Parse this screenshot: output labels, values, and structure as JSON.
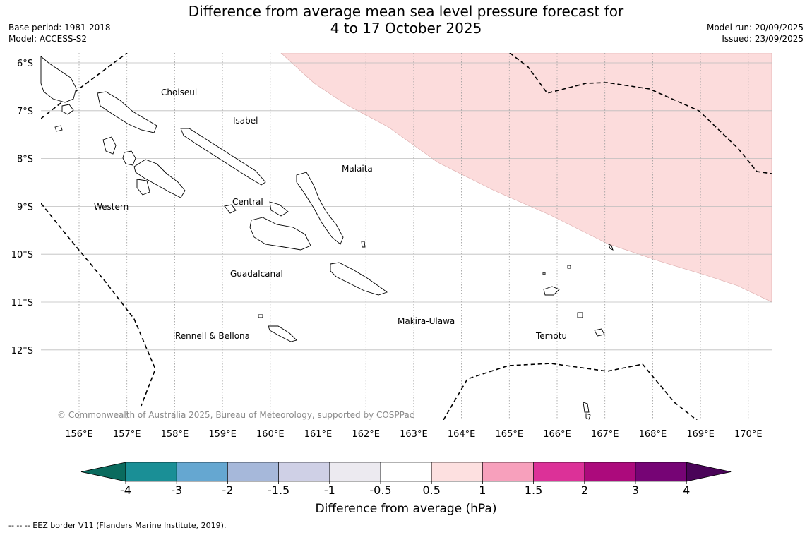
{
  "title": {
    "line1": "Difference from average mean sea level pressure forecast for",
    "line2": "4 to 17 October 2025"
  },
  "meta_left": {
    "base_period": "Base period: 1981-2018",
    "model": "Model: ACCESS-S2"
  },
  "meta_right": {
    "model_run": "Model run: 20/09/2025",
    "issued": "Issued: 23/09/2025"
  },
  "lat_labels": [
    "6°S",
    "7°S",
    "8°S",
    "9°S",
    "10°S",
    "11°S",
    "12°S"
  ],
  "lon_labels": [
    "156°E",
    "157°E",
    "158°E",
    "159°E",
    "160°E",
    "161°E",
    "162°E",
    "163°E",
    "164°E",
    "165°E",
    "166°E",
    "167°E",
    "168°E",
    "169°E",
    "170°E"
  ],
  "provinces": {
    "choiseul": "Choiseul",
    "isabel": "Isabel",
    "malaita": "Malaita",
    "western": "Western",
    "central": "Central",
    "guadalcanal": "Guadalcanal",
    "makira_ulawa": "Makira-Ulawa",
    "rennell_bellona": "Rennell & Bellona",
    "temotu": "Temotu"
  },
  "copyright": "© Commonwealth of Australia 2025, Bureau of Meteorology, supported by COSPPac",
  "colorbar": {
    "ticks": [
      "-4",
      "-3",
      "-2",
      "-1.5",
      "-1",
      "-0.5",
      "0.5",
      "1",
      "1.5",
      "2",
      "3",
      "4"
    ],
    "colors": [
      "#1a8f96",
      "#65a7d1",
      "#a6b8da",
      "#cfd0e6",
      "#eceaf0",
      "#ffffff",
      "#fde0e0",
      "#f7a0bc",
      "#dc3198",
      "#ac0a7c",
      "#760475"
    ],
    "low_extend_color": "#0a6b5e",
    "high_extend_color": "#4a0458",
    "label": "Difference from average (hPa)"
  },
  "footer": "--  --  -- EEZ border V11 (Flanders Marine Institute, 2019)."
}
